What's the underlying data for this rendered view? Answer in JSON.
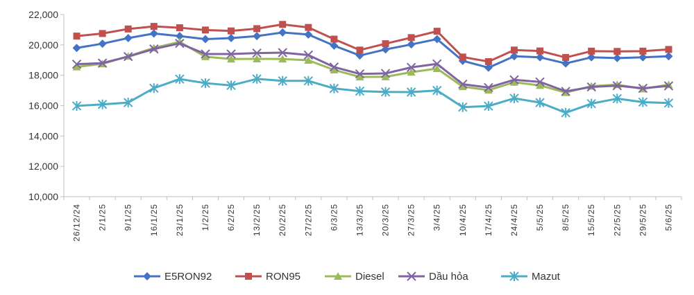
{
  "chart_data": {
    "type": "line",
    "title": "",
    "xlabel": "",
    "ylabel": "",
    "ylim": [
      10000,
      22000
    ],
    "yticks": [
      10000,
      12000,
      14000,
      16000,
      18000,
      20000,
      22000
    ],
    "ytick_labels": [
      "10,000",
      "12,000",
      "14,000",
      "16,000",
      "18,000",
      "20,000",
      "22,000"
    ],
    "grid": false,
    "legend_position": "bottom",
    "categories": [
      "26/12/24",
      "2/1/25",
      "9/1/25",
      "16/1/25",
      "23/1/25",
      "1/2/25",
      "6/2/25",
      "13/2/25",
      "20/2/25",
      "27/2/25",
      "6/3/25",
      "13/3/25",
      "20/3/25",
      "27/3/25",
      "3/4/25",
      "10/4/25",
      "17/4/25",
      "24/4/25",
      "5/5/25",
      "8/5/25",
      "15/5/25",
      "22/5/25",
      "29/5/25",
      "5/6/25"
    ],
    "series": [
      {
        "name": "E5RON92",
        "color": "#4472C4",
        "marker": "diamond",
        "values": [
          19800,
          20080,
          20450,
          20750,
          20580,
          20380,
          20450,
          20580,
          20820,
          20680,
          19950,
          19300,
          19700,
          20030,
          20380,
          18950,
          18500,
          19250,
          19180,
          18780,
          19180,
          19130,
          19180,
          19250
        ]
      },
      {
        "name": "RON95",
        "color": "#C0504D",
        "marker": "square",
        "values": [
          20580,
          20750,
          21050,
          21220,
          21130,
          20980,
          20920,
          21070,
          21350,
          21150,
          20380,
          19660,
          20080,
          20480,
          20900,
          19200,
          18900,
          19660,
          19600,
          19170,
          19590,
          19570,
          19590,
          19700
        ]
      },
      {
        "name": "Diesel",
        "color": "#9BBB59",
        "marker": "triangle",
        "values": [
          18550,
          18750,
          19250,
          19800,
          20200,
          19220,
          19070,
          19080,
          19070,
          18990,
          18350,
          17890,
          17900,
          18200,
          18440,
          17250,
          17020,
          17540,
          17330,
          16860,
          17280,
          17380,
          17100,
          17380
        ]
      },
      {
        "name": "Dầu hỏa",
        "color": "#8064A2",
        "marker": "x",
        "values": [
          18730,
          18800,
          19230,
          19730,
          20100,
          19400,
          19400,
          19460,
          19490,
          19330,
          18540,
          18090,
          18120,
          18520,
          18750,
          17410,
          17190,
          17700,
          17560,
          16940,
          17230,
          17310,
          17140,
          17300
        ]
      },
      {
        "name": "Mazut",
        "color": "#4BACC6",
        "marker": "asterisk",
        "values": [
          15980,
          16080,
          16200,
          17150,
          17750,
          17480,
          17330,
          17760,
          17630,
          17630,
          17130,
          16950,
          16900,
          16890,
          17000,
          15900,
          15970,
          16480,
          16200,
          15530,
          16130,
          16460,
          16230,
          16170
        ]
      }
    ]
  }
}
